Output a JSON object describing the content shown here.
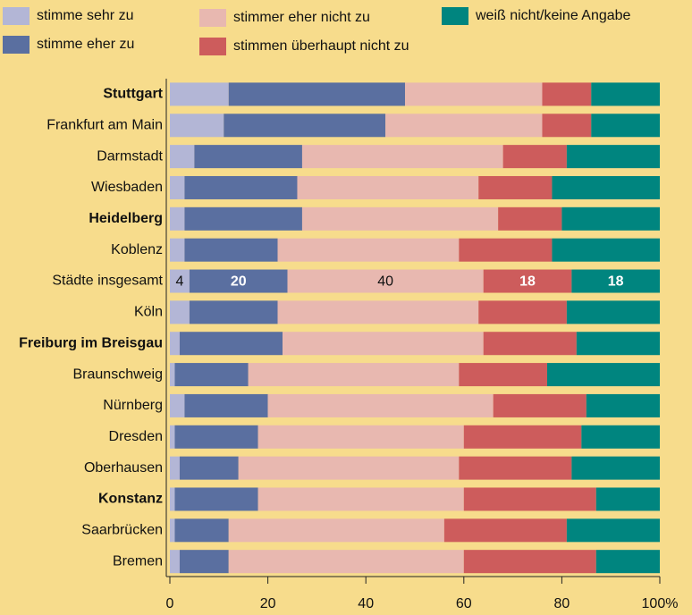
{
  "chart_data": {
    "type": "stacked_barh",
    "categories": [
      "Stuttgart",
      "Frankfurt am Main",
      "Darmstadt",
      "Wiesbaden",
      "Heidelberg",
      "Koblenz",
      "Städte insgesamt",
      "Köln",
      "Freiburg im Breisgau",
      "Braunschweig",
      "Nürnberg",
      "Dresden",
      "Oberhausen",
      "Konstanz",
      "Saarbrücken",
      "Bremen"
    ],
    "bold": [
      true,
      false,
      false,
      false,
      true,
      false,
      false,
      false,
      true,
      false,
      false,
      false,
      false,
      true,
      false,
      false
    ],
    "show_values": [
      false,
      false,
      false,
      false,
      false,
      false,
      true,
      false,
      false,
      false,
      false,
      false,
      false,
      false,
      false,
      false
    ],
    "series": [
      {
        "name": "stimme sehr zu",
        "color": "#b3b6d6",
        "values": [
          12,
          11,
          5,
          3,
          3,
          3,
          4,
          4,
          2,
          1,
          3,
          1,
          2,
          1,
          1,
          2
        ]
      },
      {
        "name": "stimme eher zu",
        "color": "#5a6fa0",
        "values": [
          36,
          33,
          22,
          23,
          24,
          19,
          20,
          18,
          21,
          15,
          17,
          17,
          12,
          17,
          11,
          10
        ]
      },
      {
        "name": "stimmer eher nicht zu",
        "color": "#e8b8b0",
        "values": [
          28,
          32,
          41,
          37,
          40,
          37,
          40,
          41,
          41,
          43,
          46,
          42,
          45,
          42,
          44,
          48
        ]
      },
      {
        "name": "stimmen überhaupt nicht zu",
        "color": "#cd5c5c",
        "values": [
          10,
          10,
          13,
          15,
          13,
          19,
          18,
          18,
          19,
          18,
          19,
          24,
          23,
          27,
          25,
          27
        ]
      },
      {
        "name": "weiß nicht/keine Angabe",
        "color": "#00857f",
        "values": [
          14,
          14,
          19,
          22,
          20,
          22,
          18,
          19,
          17,
          23,
          15,
          16,
          18,
          13,
          19,
          13
        ]
      }
    ],
    "xlim": [
      0,
      100
    ],
    "xticks": [
      0,
      20,
      40,
      60,
      80,
      {
        "value": 100,
        "label": "100%"
      }
    ]
  }
}
